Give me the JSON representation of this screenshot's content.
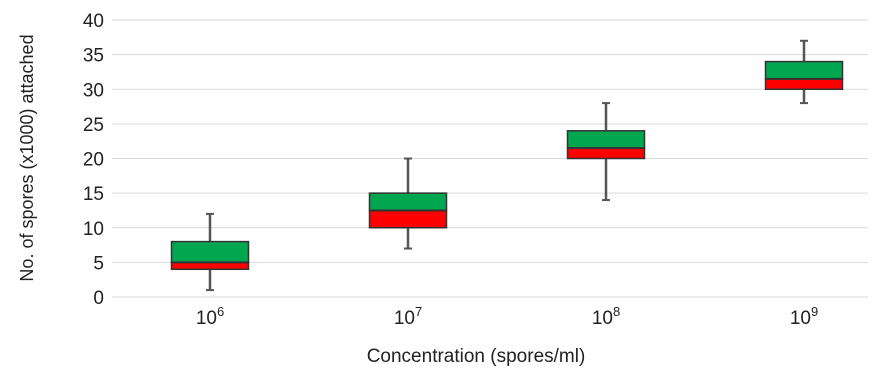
{
  "chart_data": {
    "type": "box",
    "xlabel": "Concentration (spores/ml)",
    "ylabel": "No. of spores (x1000) attached",
    "ylim": [
      0,
      40
    ],
    "yticks": [
      0,
      5,
      10,
      15,
      20,
      25,
      30,
      35,
      40
    ],
    "grid": true,
    "categories": [
      {
        "base": "10",
        "exp": "6"
      },
      {
        "base": "10",
        "exp": "7"
      },
      {
        "base": "10",
        "exp": "8"
      },
      {
        "base": "10",
        "exp": "9"
      }
    ],
    "boxes": [
      {
        "min": 1,
        "q1": 4,
        "median": 5,
        "q3": 8,
        "max": 12
      },
      {
        "min": 7,
        "q1": 10,
        "median": 12.5,
        "q3": 15,
        "max": 20
      },
      {
        "min": 14,
        "q1": 20,
        "median": 21.5,
        "q3": 24,
        "max": 28
      },
      {
        "min": 28,
        "q1": 30,
        "median": 31.5,
        "q3": 34,
        "max": 37
      }
    ],
    "colors": {
      "lower_box": "#ff0000",
      "upper_box": "#00a650",
      "whisker": "#555555",
      "grid": "#d9d9d9"
    }
  }
}
